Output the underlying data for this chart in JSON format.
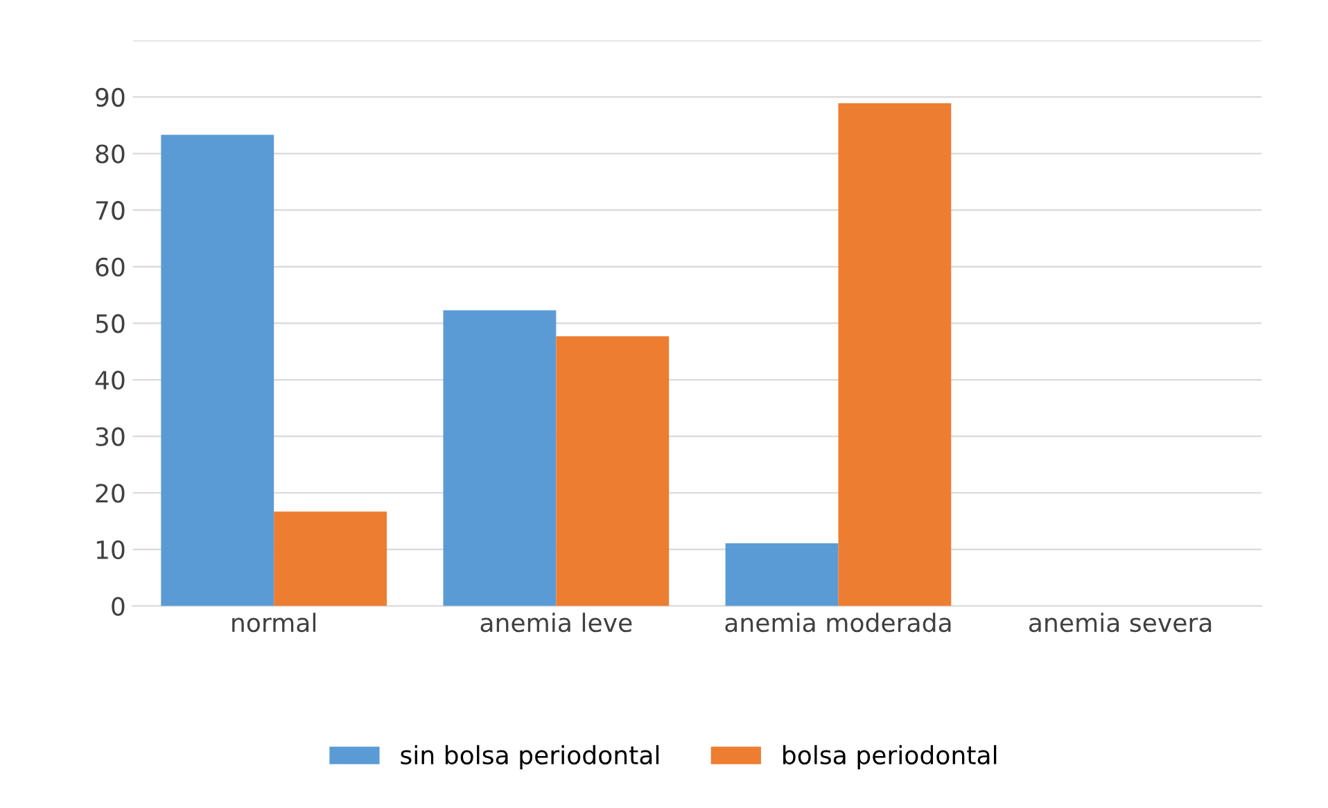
{
  "chart_data": {
    "type": "bar",
    "categories": [
      "normal",
      "anemia leve",
      "anemia moderada",
      "anemia severa"
    ],
    "series": [
      {
        "name": "sin bolsa periodontal",
        "color": "#5b9bd5",
        "values": [
          83.3,
          52.3,
          11.1,
          0
        ]
      },
      {
        "name": "bolsa periodontal",
        "color": "#ed7d31",
        "values": [
          16.7,
          47.7,
          88.9,
          0
        ]
      }
    ],
    "ylim": [
      0,
      100
    ],
    "yticks": [
      0,
      10,
      20,
      30,
      40,
      50,
      60,
      70,
      80,
      90,
      {
        "value": 100,
        "label": null
      }
    ],
    "grid": "y",
    "legend": "bottom"
  }
}
